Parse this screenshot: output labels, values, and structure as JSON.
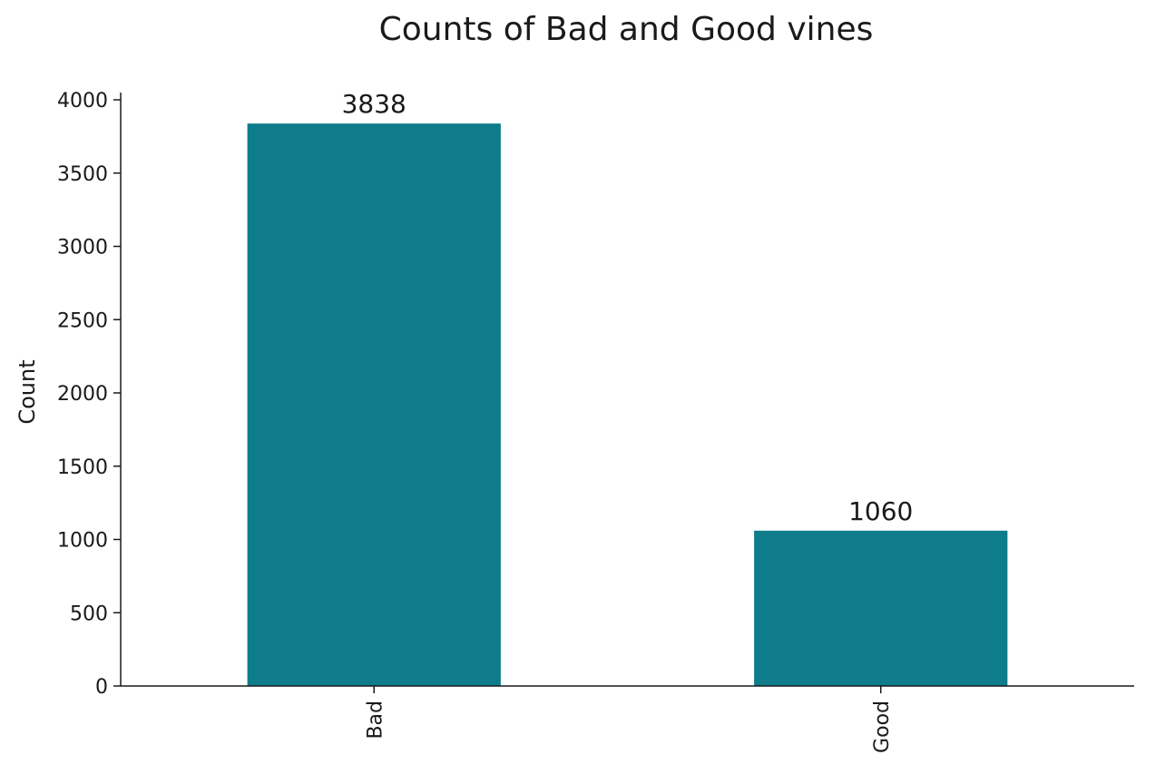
{
  "chart_data": {
    "type": "bar",
    "title": "Counts of Bad and Good vines",
    "xlabel": "",
    "ylabel": "Count",
    "categories": [
      "Bad",
      "Good"
    ],
    "values": [
      3838,
      1060
    ],
    "data_labels": [
      "3838",
      "1060"
    ],
    "ylim": [
      0,
      4000
    ],
    "yticks": [
      0,
      500,
      1000,
      1500,
      2000,
      2500,
      3000,
      3500,
      4000
    ],
    "bar_color": "#0e7c8a",
    "grid": false,
    "legend": "none",
    "spines": "left-bottom"
  }
}
